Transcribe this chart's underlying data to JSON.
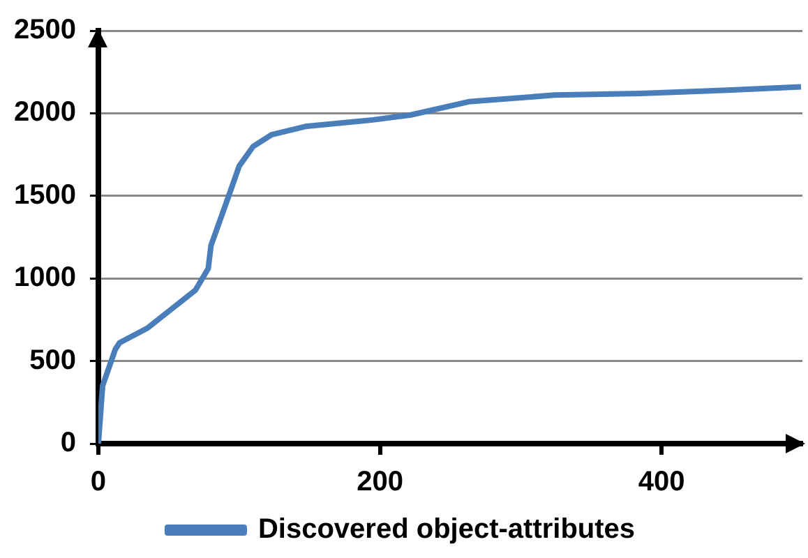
{
  "chart_data": {
    "type": "line",
    "xlim": [
      0,
      500
    ],
    "xticks": [
      0,
      200,
      400
    ],
    "ylim": [
      0,
      2500
    ],
    "yticks": [
      0,
      500,
      1000,
      1500,
      2000,
      2500
    ],
    "grid": "y",
    "legend": "bottom",
    "marker": "none",
    "line_style": "solid",
    "series": [
      {
        "name": "Discovered object-attributes",
        "color": "#4a7ebb",
        "x": [
          0,
          3,
          12,
          15,
          35,
          69,
          78,
          80,
          93,
          100,
          110,
          123,
          147,
          195,
          222,
          263,
          324,
          385,
          447,
          499
        ],
        "values": [
          0,
          350,
          570,
          610,
          700,
          930,
          1060,
          1200,
          1510,
          1680,
          1800,
          1870,
          1920,
          1960,
          1990,
          2070,
          2110,
          2120,
          2140,
          2160
        ]
      }
    ]
  }
}
